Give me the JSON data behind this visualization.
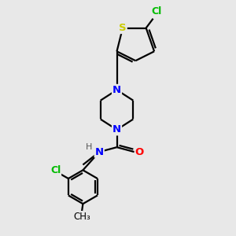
{
  "background_color": "#e8e8e8",
  "bond_color": "#000000",
  "atom_colors": {
    "N": "#0000ff",
    "O": "#ff0000",
    "S": "#cccc00",
    "Cl": "#00bb00",
    "C": "#000000",
    "H": "#555555"
  },
  "line_width": 1.6,
  "figsize": [
    3.0,
    3.0
  ],
  "dpi": 100
}
